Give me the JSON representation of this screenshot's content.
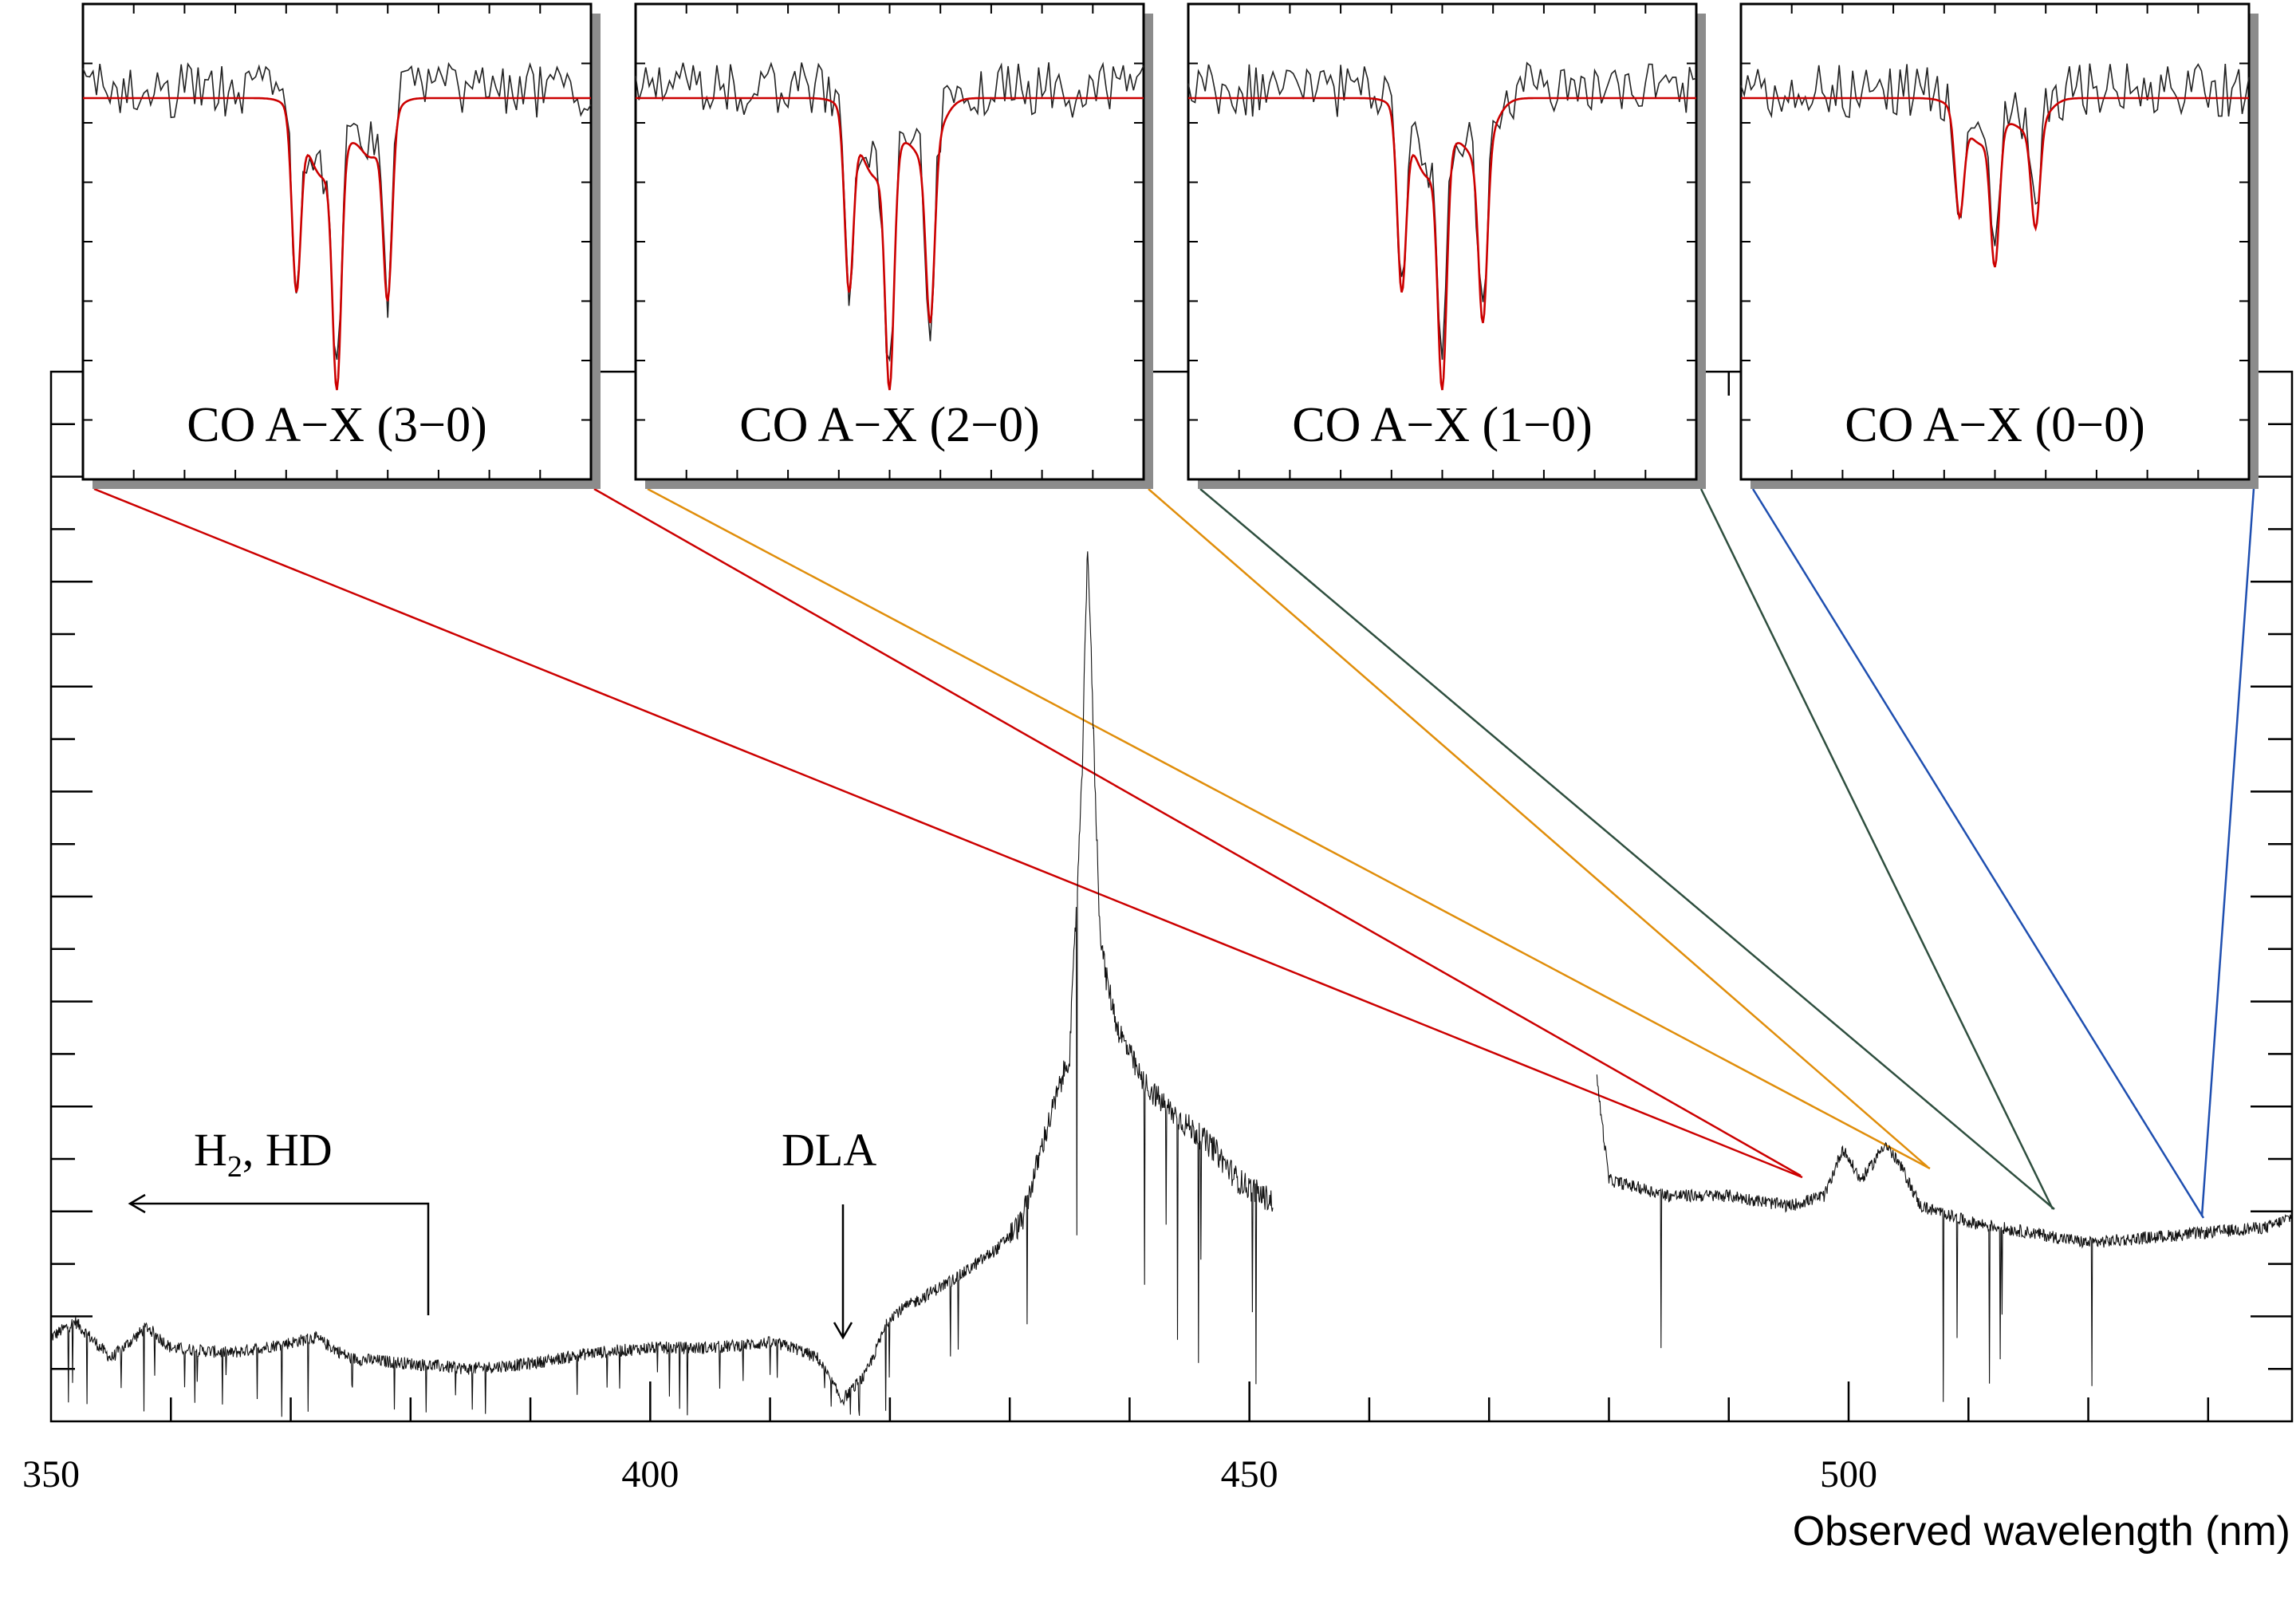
{
  "chart_data": {
    "type": "line",
    "xlabel": "Observed wavelength (nm)",
    "ylabel": "",
    "xlim": [
      350,
      537
    ],
    "ylim": [
      0,
      20
    ],
    "x_ticks": [
      350,
      400,
      450,
      500
    ],
    "grid": false,
    "series": [
      {
        "description_of_shape": "observed spectrum",
        "segments": [
          {
            "x": [
              350,
              352,
              355,
              358,
              360,
              365,
              370,
              372,
              375,
              380,
              385,
              390,
              395,
              400,
              405,
              410,
              412,
              414,
              416,
              418,
              420,
              423,
              426,
              429,
              431,
              433,
              435,
              436,
              436.5,
              437,
              437.5,
              438,
              439,
              441,
              443,
              445,
              447,
              449,
              451,
              452
            ],
            "y": [
              1.6,
              1.9,
              1.2,
              1.8,
              1.4,
              1.3,
              1.5,
              1.6,
              1.2,
              1.1,
              1.0,
              1.1,
              1.3,
              1.4,
              1.4,
              1.5,
              1.4,
              1.2,
              0.4,
              0.9,
              2.0,
              2.4,
              2.8,
              3.3,
              3.8,
              5.5,
              7.0,
              12.0,
              16.8,
              13.0,
              9.5,
              8.5,
              7.5,
              6.5,
              6.0,
              5.6,
              5.2,
              4.6,
              4.3,
              4.2
            ]
          },
          {
            "x": [
              479,
              480,
              485,
              490,
              495,
              498,
              499.5,
              501,
              502,
              503,
              504.5,
              506,
              510,
              515,
              520,
              525,
              530,
              535,
              537
            ],
            "y": [
              6.5,
              4.6,
              4.3,
              4.3,
              4.1,
              4.3,
              5.2,
              4.6,
              4.9,
              5.3,
              4.8,
              4.1,
              3.8,
              3.6,
              3.4,
              3.5,
              3.6,
              3.7,
              3.9
            ]
          }
        ]
      }
    ],
    "annotations": [
      {
        "label_main": "H",
        "label_sub": "2",
        "label_rest": ", HD",
        "arrow": "left"
      },
      {
        "label": "DLA",
        "arrow": "down",
        "x": 416.8
      }
    ],
    "insets": [
      {
        "label": "CO A−X (3−0)",
        "line_color": "#cc0000",
        "model_color": "#cc0000"
      },
      {
        "label": "CO A−X (2−0)",
        "line_color": "#e08e0b",
        "model_color": "#cc0000"
      },
      {
        "label": "CO A−X (1−0)",
        "line_color": "#2f4f3f",
        "model_color": "#cc0000"
      },
      {
        "label": "CO A−X (0−0)",
        "line_color": "#1f4fb0",
        "model_color": "#cc0000"
      }
    ]
  }
}
